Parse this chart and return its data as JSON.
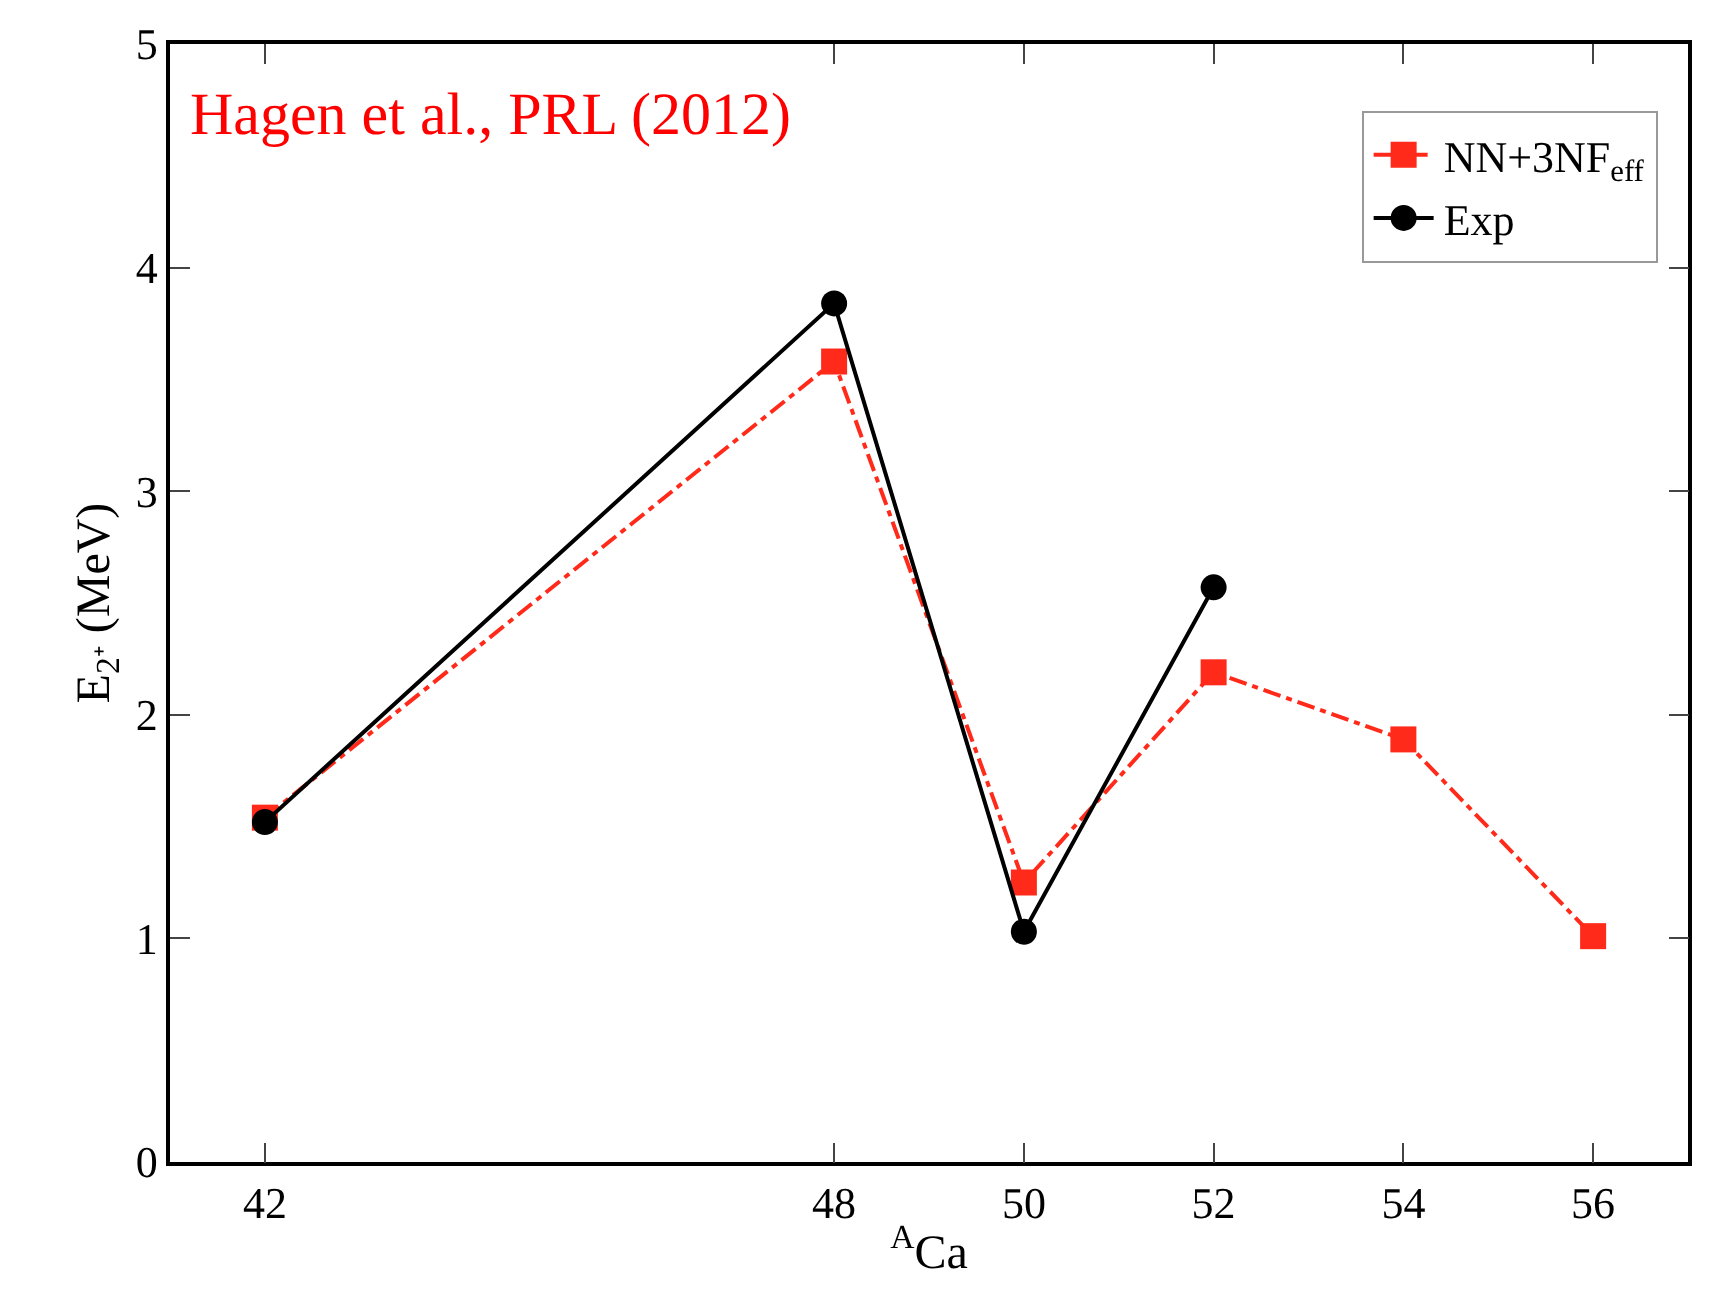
{
  "chart_data": {
    "type": "line",
    "xlabel": "$^{A}$Ca",
    "ylabel": "E$_{2⁺}$ (MeV)",
    "annotations": [
      "Hagen et al., PRL (2012)"
    ],
    "series": [
      {
        "name": "NN+3NF$_{eff}$",
        "color": "#ff2a1a",
        "x": [
          42,
          48,
          50,
          52,
          54,
          56
        ],
        "values": [
          1.54,
          3.58,
          1.25,
          2.19,
          1.89,
          1.01
        ],
        "marker": "square",
        "line_style": "dashdot"
      },
      {
        "name": "Exp",
        "color": "#000000",
        "x": [
          42,
          48,
          50,
          52
        ],
        "values": [
          1.52,
          3.84,
          1.03,
          2.57
        ],
        "marker": "circle",
        "line_style": "solid"
      }
    ],
    "xlim": [
      41,
      57
    ],
    "xticks": [
      42,
      48,
      50,
      52,
      54,
      56
    ],
    "ylim": [
      0,
      5
    ],
    "yticks": [
      0,
      1,
      2,
      3,
      4,
      5
    ],
    "legend": "top right"
  }
}
